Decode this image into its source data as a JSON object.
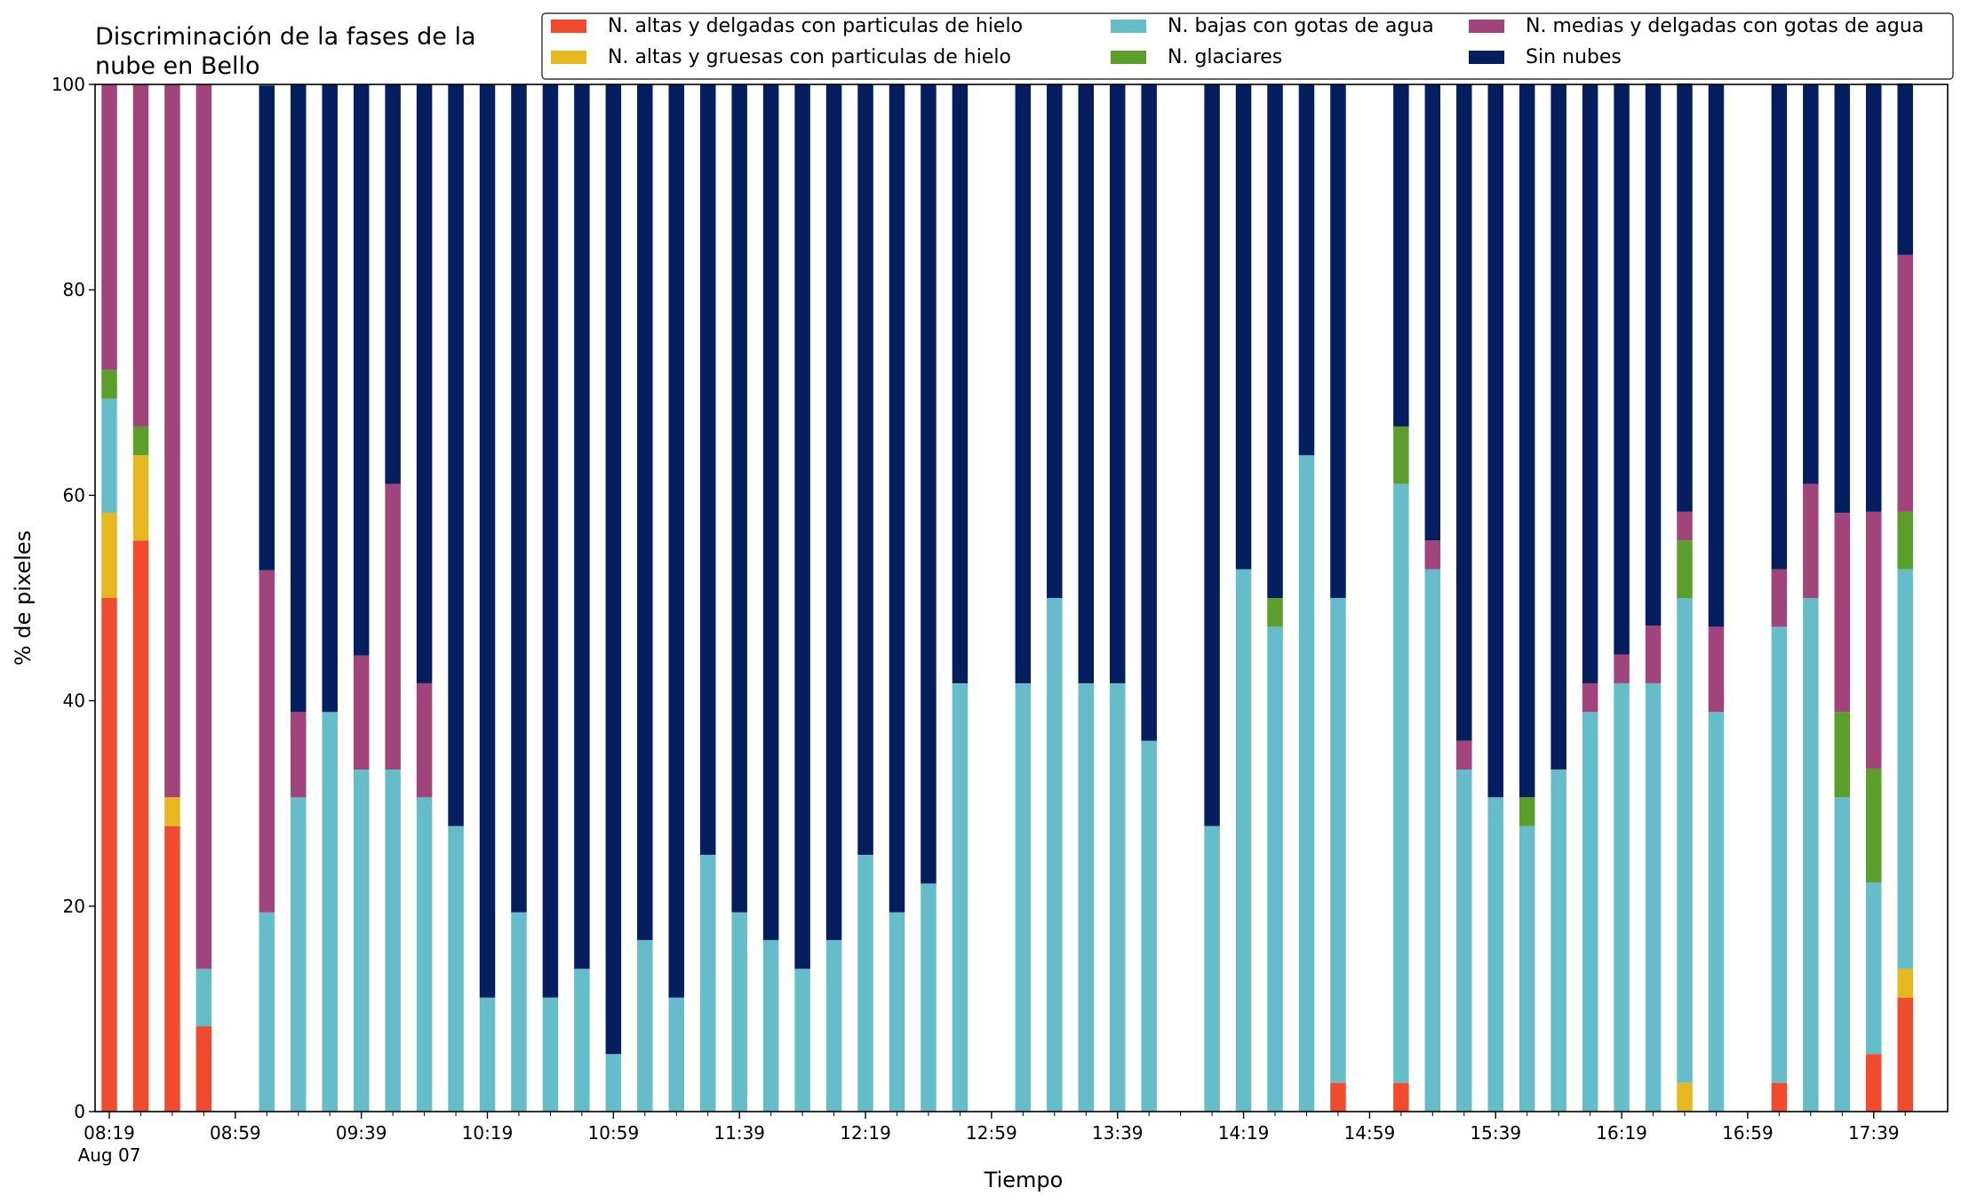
{
  "chart_data": {
    "type": "bar",
    "stacked": true,
    "title_lines": [
      "Discriminación de la fases de la",
      "nube en Bello"
    ],
    "xlabel": "Tiempo",
    "ylabel": "% de pixeles",
    "ylim": [
      0,
      100
    ],
    "yticks": [
      0,
      20,
      40,
      60,
      80,
      100
    ],
    "x_tick_labels": [
      "08:19",
      "08:59",
      "09:39",
      "10:19",
      "10:59",
      "11:39",
      "12:19",
      "12:59",
      "13:39",
      "14:19",
      "14:59",
      "15:39",
      "16:19",
      "16:59",
      "17:39"
    ],
    "x_date_label": "Aug 07",
    "grid": false,
    "legend_position": "top",
    "categories": [
      "08:19",
      "08:29",
      "08:39",
      "08:49",
      "08:59",
      "09:09",
      "09:19",
      "09:29",
      "09:39",
      "09:49",
      "09:59",
      "10:09",
      "10:19",
      "10:29",
      "10:39",
      "10:49",
      "10:59",
      "11:09",
      "11:19",
      "11:29",
      "11:39",
      "11:49",
      "11:59",
      "12:09",
      "12:19",
      "12:29",
      "12:39",
      "12:49",
      "12:59",
      "13:09",
      "13:19",
      "13:29",
      "13:39",
      "13:49",
      "13:59",
      "14:09",
      "14:19",
      "14:29",
      "14:39",
      "14:49",
      "14:59",
      "15:09",
      "15:19",
      "15:29",
      "15:39",
      "15:49",
      "15:59",
      "16:09",
      "16:19",
      "16:29",
      "16:39",
      "16:49",
      "16:59",
      "17:09",
      "17:19",
      "17:29",
      "17:39",
      "17:49"
    ],
    "series": [
      {
        "name": "N. altas y delgadas con particulas de hielo",
        "color": "#ef4b2c",
        "values": [
          50,
          55.6,
          27.8,
          8.3,
          0,
          0,
          0,
          0,
          0,
          0,
          0,
          0,
          0,
          0,
          0,
          0,
          0,
          0,
          0,
          0,
          0,
          0,
          0,
          0,
          0,
          0,
          0,
          0,
          0,
          0,
          0,
          0,
          0,
          0,
          0,
          0,
          0,
          0,
          0,
          2.8,
          0,
          2.8,
          0,
          0,
          0,
          0,
          0,
          0,
          0,
          0,
          0,
          0,
          0,
          2.8,
          0,
          0,
          5.6,
          11.1
        ]
      },
      {
        "name": "N. altas y gruesas con particulas de hielo",
        "color": "#e6b71e",
        "values": [
          8.3,
          8.3,
          2.8,
          0,
          0,
          0,
          0,
          0,
          0,
          0,
          0,
          0,
          0,
          0,
          0,
          0,
          0,
          0,
          0,
          0,
          0,
          0,
          0,
          0,
          0,
          0,
          0,
          0,
          0,
          0,
          0,
          0,
          0,
          0,
          0,
          0,
          0,
          0,
          0,
          0,
          0,
          0,
          0,
          0,
          0,
          0,
          0,
          0,
          0,
          0,
          2.8,
          0,
          0,
          0,
          0,
          0,
          0,
          2.8
        ]
      },
      {
        "name": "N. bajas con gotas de agua",
        "color": "#66bdca",
        "values": [
          11.1,
          0,
          0,
          5.6,
          0,
          19.4,
          30.6,
          38.9,
          33.3,
          33.3,
          30.6,
          27.8,
          11.1,
          19.4,
          11.1,
          13.9,
          5.6,
          16.7,
          11.1,
          25,
          19.4,
          16.7,
          13.9,
          16.7,
          25,
          19.4,
          22.2,
          41.7,
          0,
          41.7,
          50,
          41.7,
          41.7,
          36.1,
          0,
          27.8,
          52.8,
          47.2,
          63.9,
          47.2,
          0,
          58.3,
          52.8,
          33.3,
          30.6,
          27.8,
          33.3,
          38.9,
          41.7,
          41.7,
          47.2,
          38.9,
          0,
          44.4,
          50,
          30.6,
          16.7,
          38.9
        ]
      },
      {
        "name": "N. glaciares",
        "color": "#5b9f2a",
        "values": [
          2.8,
          2.8,
          0,
          0,
          0,
          0,
          0,
          0,
          0,
          0,
          0,
          0,
          0,
          0,
          0,
          0,
          0,
          0,
          0,
          0,
          0,
          0,
          0,
          0,
          0,
          0,
          0,
          0,
          0,
          0,
          0,
          0,
          0,
          0,
          0,
          0,
          0,
          2.8,
          0,
          0,
          0,
          5.6,
          0,
          0,
          0,
          2.8,
          0,
          0,
          0,
          0,
          5.6,
          0,
          0,
          0,
          0,
          8.3,
          11.1,
          5.6
        ]
      },
      {
        "name": "N. medias y delgadas con gotas de agua",
        "color": "#a1447a",
        "values": [
          27.8,
          33.3,
          69.4,
          86.1,
          0,
          33.3,
          8.3,
          0,
          11.1,
          27.8,
          11.1,
          0,
          0,
          0,
          0,
          0,
          0,
          0,
          0,
          0,
          0,
          0,
          0,
          0,
          0,
          0,
          0,
          0,
          0,
          0,
          0,
          0,
          0,
          0,
          0,
          0,
          0,
          0,
          0,
          0,
          0,
          0,
          2.8,
          2.8,
          0,
          0,
          0,
          2.8,
          2.8,
          5.6,
          2.8,
          8.3,
          0,
          5.6,
          11.1,
          19.4,
          25,
          25
        ]
      },
      {
        "name": "Sin nubes",
        "color": "#041e60",
        "values": [
          0,
          0,
          0,
          0,
          0,
          47.2,
          61.1,
          61.1,
          55.6,
          38.9,
          58.3,
          72.2,
          88.9,
          80.6,
          88.9,
          86.1,
          94.4,
          83.3,
          88.9,
          75,
          80.6,
          83.3,
          86.1,
          83.3,
          75,
          80.6,
          77.8,
          58.3,
          0,
          58.3,
          50,
          58.3,
          58.3,
          63.9,
          0,
          72.2,
          47.2,
          50,
          36.1,
          50,
          0,
          33.3,
          44.4,
          63.9,
          69.4,
          69.4,
          66.7,
          58.3,
          55.6,
          52.8,
          41.7,
          52.8,
          0,
          47.2,
          38.9,
          41.7,
          41.7,
          16.7
        ]
      }
    ]
  }
}
